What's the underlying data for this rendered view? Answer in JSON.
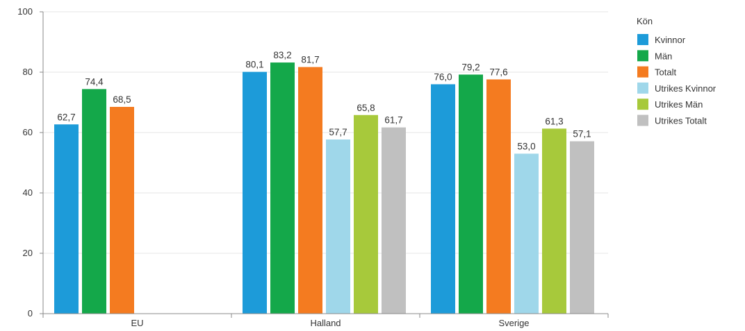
{
  "chart_data": {
    "type": "bar",
    "categories": [
      "EU",
      "Halland",
      "Sverige"
    ],
    "series": [
      {
        "name": "Kvinnor",
        "color": "#1d9bd9",
        "values": [
          62.7,
          80.1,
          76.0
        ],
        "labels": [
          "62,7",
          "80,1",
          "76,0"
        ]
      },
      {
        "name": "Män",
        "color": "#14a84a",
        "values": [
          74.4,
          83.2,
          79.2
        ],
        "labels": [
          "74,4",
          "83,2",
          "79,2"
        ]
      },
      {
        "name": "Totalt",
        "color": "#f47b20",
        "values": [
          68.5,
          81.7,
          77.6
        ],
        "labels": [
          "68,5",
          "81,7",
          "77,6"
        ]
      },
      {
        "name": "Utrikes Kvinnor",
        "color": "#9fd7ea",
        "values": [
          null,
          57.7,
          53.0
        ],
        "labels": [
          null,
          "57,7",
          "53,0"
        ]
      },
      {
        "name": "Utrikes Män",
        "color": "#a7c93b",
        "values": [
          null,
          65.8,
          61.3
        ],
        "labels": [
          null,
          "65,8",
          "61,3"
        ]
      },
      {
        "name": "Utrikes Totalt",
        "color": "#c0c0c0",
        "values": [
          null,
          61.7,
          57.1
        ],
        "labels": [
          null,
          "61,7",
          "57,1"
        ]
      }
    ],
    "ylim": [
      0,
      100
    ],
    "yticks": [
      "0",
      "20",
      "40",
      "60",
      "80",
      "100"
    ],
    "grid": true,
    "legend": {
      "title": "Kön",
      "position": "right"
    }
  }
}
